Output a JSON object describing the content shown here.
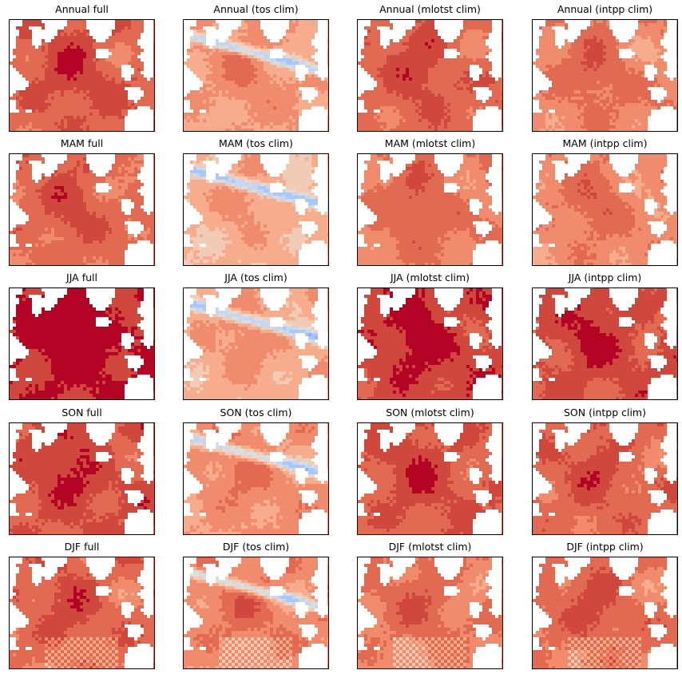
{
  "figure": {
    "rows": [
      {
        "label": "Annual",
        "panels": [
          "Annual full",
          "Annual (tos clim)",
          "Annual (mlotst clim)",
          "Annual (intpp clim)"
        ]
      },
      {
        "label": "MAM",
        "panels": [
          "MAM full",
          "MAM (tos clim)",
          "MAM (mlotst clim)",
          "MAM (intpp clim)"
        ]
      },
      {
        "label": "JJA",
        "panels": [
          "JJA full",
          "JJA (tos clim)",
          "JJA (mlotst clim)",
          "JJA (intpp clim)"
        ]
      },
      {
        "label": "SON",
        "panels": [
          "SON full",
          "SON (tos clim)",
          "SON (mlotst clim)",
          "SON (intpp clim)"
        ]
      },
      {
        "label": "DJF",
        "panels": [
          "DJF full",
          "DJF (tos clim)",
          "DJF (mlotst clim)",
          "DJF (intpp clim)"
        ]
      }
    ],
    "colormap": "coolwarm",
    "colors": {
      "land": "#ffffff",
      "dark_red": "#b40426",
      "red": "#d0473d",
      "mid_red": "#e26952",
      "light_red": "#f08b6e",
      "salmon": "#f7ac8e",
      "pale": "#f2cbb7",
      "neutral": "#dddcdc",
      "pale_blue": "#c5d6f2",
      "light_blue": "#aac7fd",
      "blue": "#8db0fe"
    },
    "panel_levels": [
      [
        0.8,
        0.62,
        0.78,
        0.7
      ],
      [
        0.76,
        0.55,
        0.72,
        0.68
      ],
      [
        0.93,
        0.58,
        0.88,
        0.84
      ],
      [
        0.83,
        0.64,
        0.81,
        0.77
      ],
      [
        0.77,
        0.68,
        0.71,
        0.75
      ]
    ]
  }
}
